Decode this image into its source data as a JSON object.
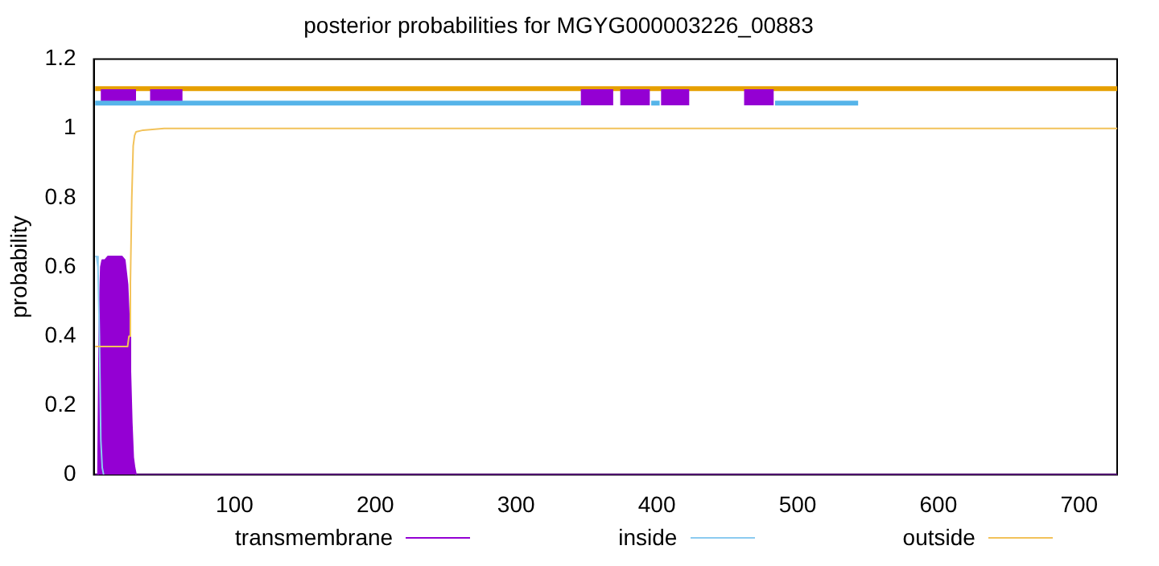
{
  "chart_data": {
    "type": "line",
    "title": "posterior probabilities for MGYG000003226_00883",
    "ylabel": "probability",
    "xlim": [
      0,
      727
    ],
    "xticks": [
      100,
      200,
      300,
      400,
      500,
      600,
      700
    ],
    "ylim": [
      0,
      1.2
    ],
    "yticks": [
      0,
      0.2,
      0.4,
      0.6,
      0.8,
      1,
      1.2
    ],
    "legend": "bottom",
    "series": [
      {
        "name": "transmembrane",
        "type": "area",
        "color": "#9400d3",
        "x": [
          1,
          3,
          4,
          5,
          6,
          8,
          10,
          15,
          20,
          22,
          24,
          25,
          26,
          27,
          28,
          29,
          30,
          727
        ],
        "values": [
          0,
          0,
          0.47,
          0.6,
          0.62,
          0.62,
          0.63,
          0.63,
          0.63,
          0.62,
          0.55,
          0.45,
          0.3,
          0.15,
          0.05,
          0.02,
          0,
          0
        ]
      },
      {
        "name": "inside",
        "type": "line",
        "color": "#8ccbf0",
        "x": [
          1,
          2,
          3,
          4,
          5,
          6,
          7
        ],
        "values": [
          0.63,
          0.63,
          0.6,
          0.4,
          0.1,
          0.02,
          0
        ]
      },
      {
        "name": "outside",
        "type": "line",
        "color": "#f2c25a",
        "x": [
          1,
          24,
          25,
          26,
          27,
          28,
          29,
          30,
          35,
          50,
          727
        ],
        "values": [
          0.37,
          0.37,
          0.4,
          0.55,
          0.8,
          0.95,
          0.98,
          0.99,
          0.995,
          1,
          1
        ]
      },
      {
        "type": "line",
        "color": "#e69f00",
        "x": [
          1,
          727
        ],
        "values": [
          1.115,
          1.115
        ]
      },
      {
        "type": "line",
        "color": "#9400d3",
        "x": [
          5,
          30,
          31,
          40,
          63,
          64,
          346,
          369,
          370,
          374,
          395,
          396,
          403,
          423,
          424,
          462,
          483
        ],
        "values": [
          1.09,
          1.09,
          null,
          1.09,
          1.09,
          null,
          1.09,
          1.09,
          null,
          1.09,
          1.09,
          null,
          1.09,
          1.09,
          null,
          1.09,
          1.09
        ]
      },
      {
        "type": "line",
        "color": "#56b4e9",
        "x": [
          1,
          346,
          347,
          396,
          402,
          403,
          484,
          543
        ],
        "values": [
          1.073,
          1.073,
          null,
          1.073,
          1.073,
          null,
          1.073,
          1.073
        ]
      }
    ]
  }
}
